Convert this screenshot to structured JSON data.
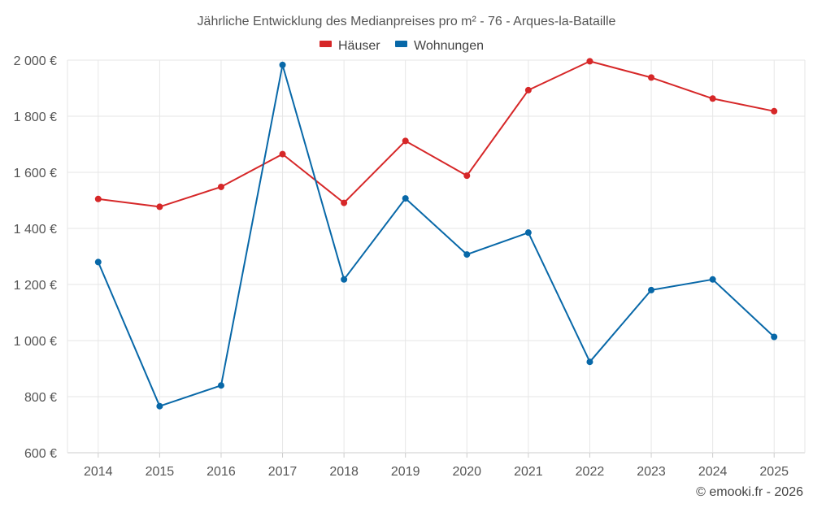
{
  "chart_data": {
    "type": "line",
    "title": "Jährliche Entwicklung des Medianpreises pro m² - 76 - Arques-la-Bataille",
    "categories": [
      "2014",
      "2015",
      "2016",
      "2017",
      "2018",
      "2019",
      "2020",
      "2021",
      "2022",
      "2023",
      "2024",
      "2025"
    ],
    "ylim": [
      600,
      2000
    ],
    "yticks": [
      600,
      800,
      1000,
      1200,
      1400,
      1600,
      1800,
      2000
    ],
    "ytick_labels": [
      "600 €",
      "800 €",
      "1 000 €",
      "1 200 €",
      "1 400 €",
      "1 600 €",
      "1 800 €",
      "2 000 €"
    ],
    "legend_position": "top-center",
    "grid": true,
    "series": [
      {
        "name": "Häuser",
        "color": "#d62728",
        "values": [
          1505,
          1477,
          1548,
          1665,
          1491,
          1712,
          1588,
          1893,
          1996,
          1938,
          1863,
          1818
        ]
      },
      {
        "name": "Wohnungen",
        "color": "#0868a8",
        "values": [
          1280,
          766,
          840,
          1983,
          1218,
          1507,
          1307,
          1385,
          924,
          1180,
          1218,
          1013
        ]
      }
    ]
  },
  "credit": "© emooki.fr - 2026"
}
